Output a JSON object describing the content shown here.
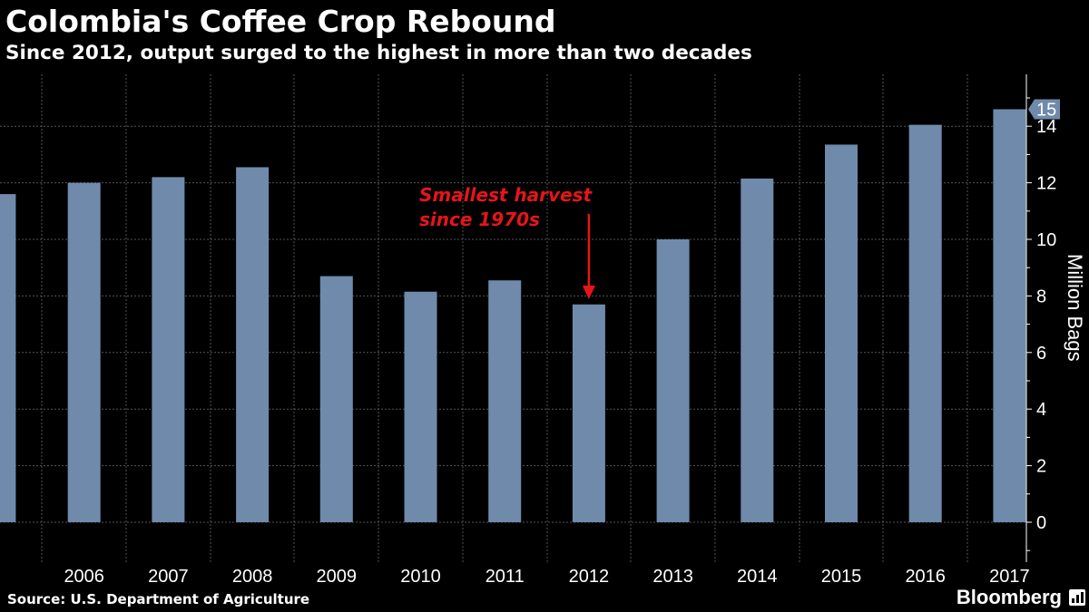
{
  "title": "Colombia's Coffee Crop Rebound",
  "subtitle": "Since 2012, output surged to the highest in more than two decades",
  "source": "Source: U.S. Department of Agriculture",
  "brand": "Bloomberg",
  "colors": {
    "background": "#000000",
    "bar": "#6f8aab",
    "grid": "#555555",
    "annotation": "#e8141b",
    "text": "#ffffff"
  },
  "chart_data": {
    "type": "bar",
    "categories": [
      "",
      "2006",
      "2007",
      "2008",
      "2009",
      "2010",
      "2011",
      "2012",
      "2013",
      "2014",
      "2015",
      "2016",
      "2017"
    ],
    "values": [
      11.6,
      12.0,
      12.2,
      12.55,
      8.7,
      8.15,
      8.55,
      7.7,
      10.0,
      12.15,
      13.35,
      14.05,
      14.6
    ],
    "last_value_label": "15",
    "ylabel": "Million Bags",
    "yticks": [
      0,
      2,
      4,
      6,
      8,
      10,
      12,
      14
    ],
    "ylim": [
      -1.4,
      15.8
    ],
    "grid": true,
    "y_axis_side": "right",
    "annotation": {
      "lines": [
        "Smallest harvest",
        "since 1970s"
      ],
      "points_to": "2012"
    }
  }
}
